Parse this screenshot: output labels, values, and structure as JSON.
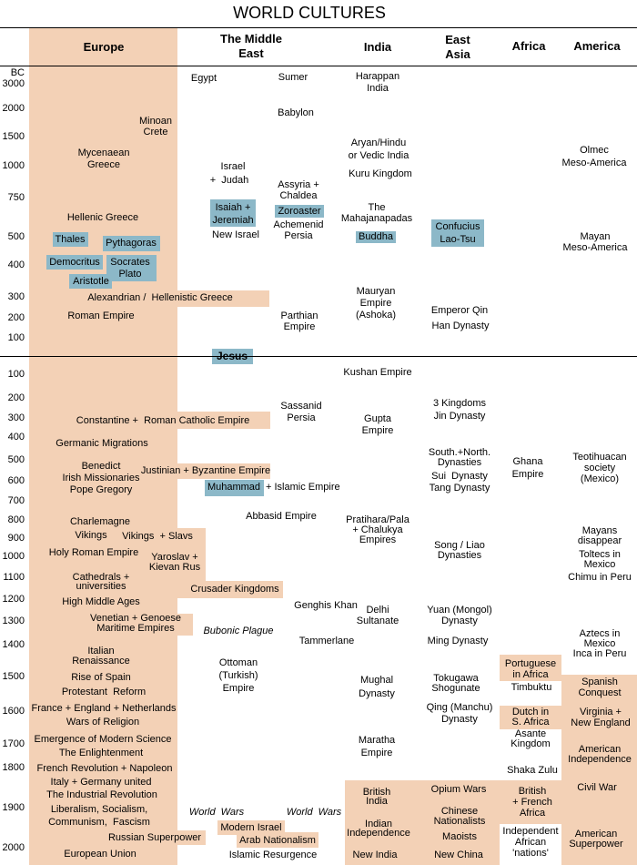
{
  "title": "WORLD CULTURES",
  "colors": {
    "highlight_band": "#f3d1b6",
    "person_box": "#8cb8c8"
  },
  "columns": [
    "Europe",
    "The Middle\nEast",
    "India",
    "East\nAsia",
    "Africa",
    "America"
  ],
  "years_bc": [
    "BC\n3000",
    "2000",
    "1500",
    "1000",
    "750",
    "500",
    "400",
    "300",
    "200",
    "100"
  ],
  "years_ad": [
    "100",
    "200",
    "300",
    "400",
    "500",
    "600",
    "700",
    "800",
    "900",
    "1000",
    "1100",
    "1200",
    "1300",
    "1400",
    "1500",
    "1600",
    "1700",
    "1800",
    "1900",
    "2000"
  ],
  "europe": {
    "minoan": "Minoan\nCrete",
    "mycenaean": "Mycenaean\nGreece",
    "hellenic": "Hellenic Greece",
    "thales": "Thales",
    "pythagoras": "Pythagoras",
    "democritus": "Democritus",
    "socrates": "Socrates\nPlato",
    "aristotle": "Aristotle",
    "alexandrian": "Alexandrian /  Hellenistic Greece",
    "roman": "Roman Empire",
    "constantine": "Constantine +  Roman Catholic Empire",
    "germanic": "Germanic Migrations",
    "benedict": "Benedict\nIrish Missionaries\nPope Gregory",
    "justinian": "Justinian + Byzantine Empire",
    "charlemagne": "Charlemagne",
    "vikings": "Vikings",
    "vikings_slavs": "Vikings  + Slavs",
    "hre": "Holy Roman Empire",
    "yaroslav": "Yaroslav +\nKievan Rus",
    "cathedrals": "Cathedrals +\nuniversities",
    "crusader": "Crusader Kingdoms",
    "high_middle": "High Middle Ages",
    "venetian": "Venetian + Genoese\nMaritime Empires",
    "renaissance": "Italian\nRenaissance",
    "spain": "Rise of Spain",
    "protestant": "Protestant  Reform",
    "france": "France + England + Netherlands",
    "wars_religion": "Wars of Religion",
    "science": "Emergence of Modern Science",
    "enlightenment": "The Enlightenment",
    "french_rev": "French Revolution + Napoleon",
    "italy": "Italy + Germany united",
    "industrial": "The Industrial Revolution",
    "liberalism": "Liberalism, Socialism,\nCommunism,  Fascism",
    "russian": "Russian Superpower",
    "eu": "European Union"
  },
  "middle_east": {
    "egypt": "Egypt",
    "sumer": "Sumer",
    "babylon": "Babylon",
    "israel": "Israel",
    "judah": "+  Judah",
    "isaiah": "Isaiah +\nJeremiah",
    "new_israel": "New Israel",
    "assyria": "Assyria +\nChaldea",
    "zoroaster": "Zoroaster",
    "achemenid": "Achemenid\nPersia",
    "parthian": "Parthian\nEmpire",
    "jesus": "Jesus",
    "sassanid": "Sassanid\nPersia",
    "muhammad": "Muhammad",
    "islamic": "+ Islamic Empire",
    "abbasid": "Abbasid Empire",
    "genghis": "Genghis Khan",
    "plague": "Bubonic Plague",
    "tammerlane": "Tammerlane",
    "ottoman": "Ottoman\n(Turkish)\nEmpire",
    "world_wars_1": "World  Wars",
    "world_wars_2": "World  Wars",
    "modern_israel": "Modern Israel",
    "arab": "Arab Nationalism",
    "islamic_res": "Islamic Resurgence"
  },
  "india": {
    "harappan": "Harappan\nIndia",
    "aryan": "Aryan/Hindu\nor Vedic India",
    "kuru": "Kuru Kingdom",
    "mahajanapadas": "The\nMahajanapadas",
    "buddha": "Buddha",
    "mauryan": "Mauryan\nEmpire\n(Ashoka)",
    "kushan": "Kushan Empire",
    "gupta": "Gupta\nEmpire",
    "pratihara": "Pratihara/Pala\n+ Chalukya\nEmpires",
    "delhi": "Delhi\nSultanate",
    "mughal": "Mughal\nDynasty",
    "maratha": "Maratha\nEmpire",
    "british": "British\nIndia",
    "independence": "Indian\nIndependence",
    "new_india": "New India"
  },
  "east_asia": {
    "confucius": "Confucius\nLao-Tsu",
    "qin": "Emperor Qin",
    "han": "Han Dynasty",
    "three_kingdoms": "3 Kingdoms",
    "jin": "Jin Dynasty",
    "south_north": "South.+North.\nDynasties",
    "sui": "Sui  Dynasty",
    "tang": "Tang Dynasty",
    "song": "Song / Liao\nDynasties",
    "yuan": "Yuan (Mongol)\nDynasty",
    "ming": "Ming Dynasty",
    "tokugawa": "Tokugawa\nShogunate",
    "qing": "Qing (Manchu)\nDynasty",
    "opium": "Opium Wars",
    "nationalists": "Chinese\nNationalists",
    "maoists": "Maoists",
    "new_china": "New China"
  },
  "africa": {
    "ghana": "Ghana\nEmpire",
    "portuguese": "Portuguese\nin Africa",
    "timbuktu": "Timbuktu",
    "dutch": "Dutch in\nS. Africa",
    "asante": "Asante\nKingdom",
    "shaka": "Shaka Zulu",
    "british_french": "British\n+ French\nAfrica",
    "independent": "Independent\nAfrican\n'nations'"
  },
  "america": {
    "olmec": "Olmec\nMeso-America",
    "mayan": "Mayan\nMeso-America",
    "teotihuacan": "Teotihuacan\nsociety\n(Mexico)",
    "mayans_disappear": "Mayans\ndisappear",
    "toltecs": "Toltecs in\nMexico",
    "chimu": "Chimu in Peru",
    "aztecs": "Aztecs in\nMexico\nInca in Peru",
    "spanish": "Spanish\nConquest",
    "virginia": "Virginia +\nNew England",
    "independence": "American\nIndependence",
    "civil_war": "Civil War",
    "superpower": "American\nSuperpower"
  }
}
